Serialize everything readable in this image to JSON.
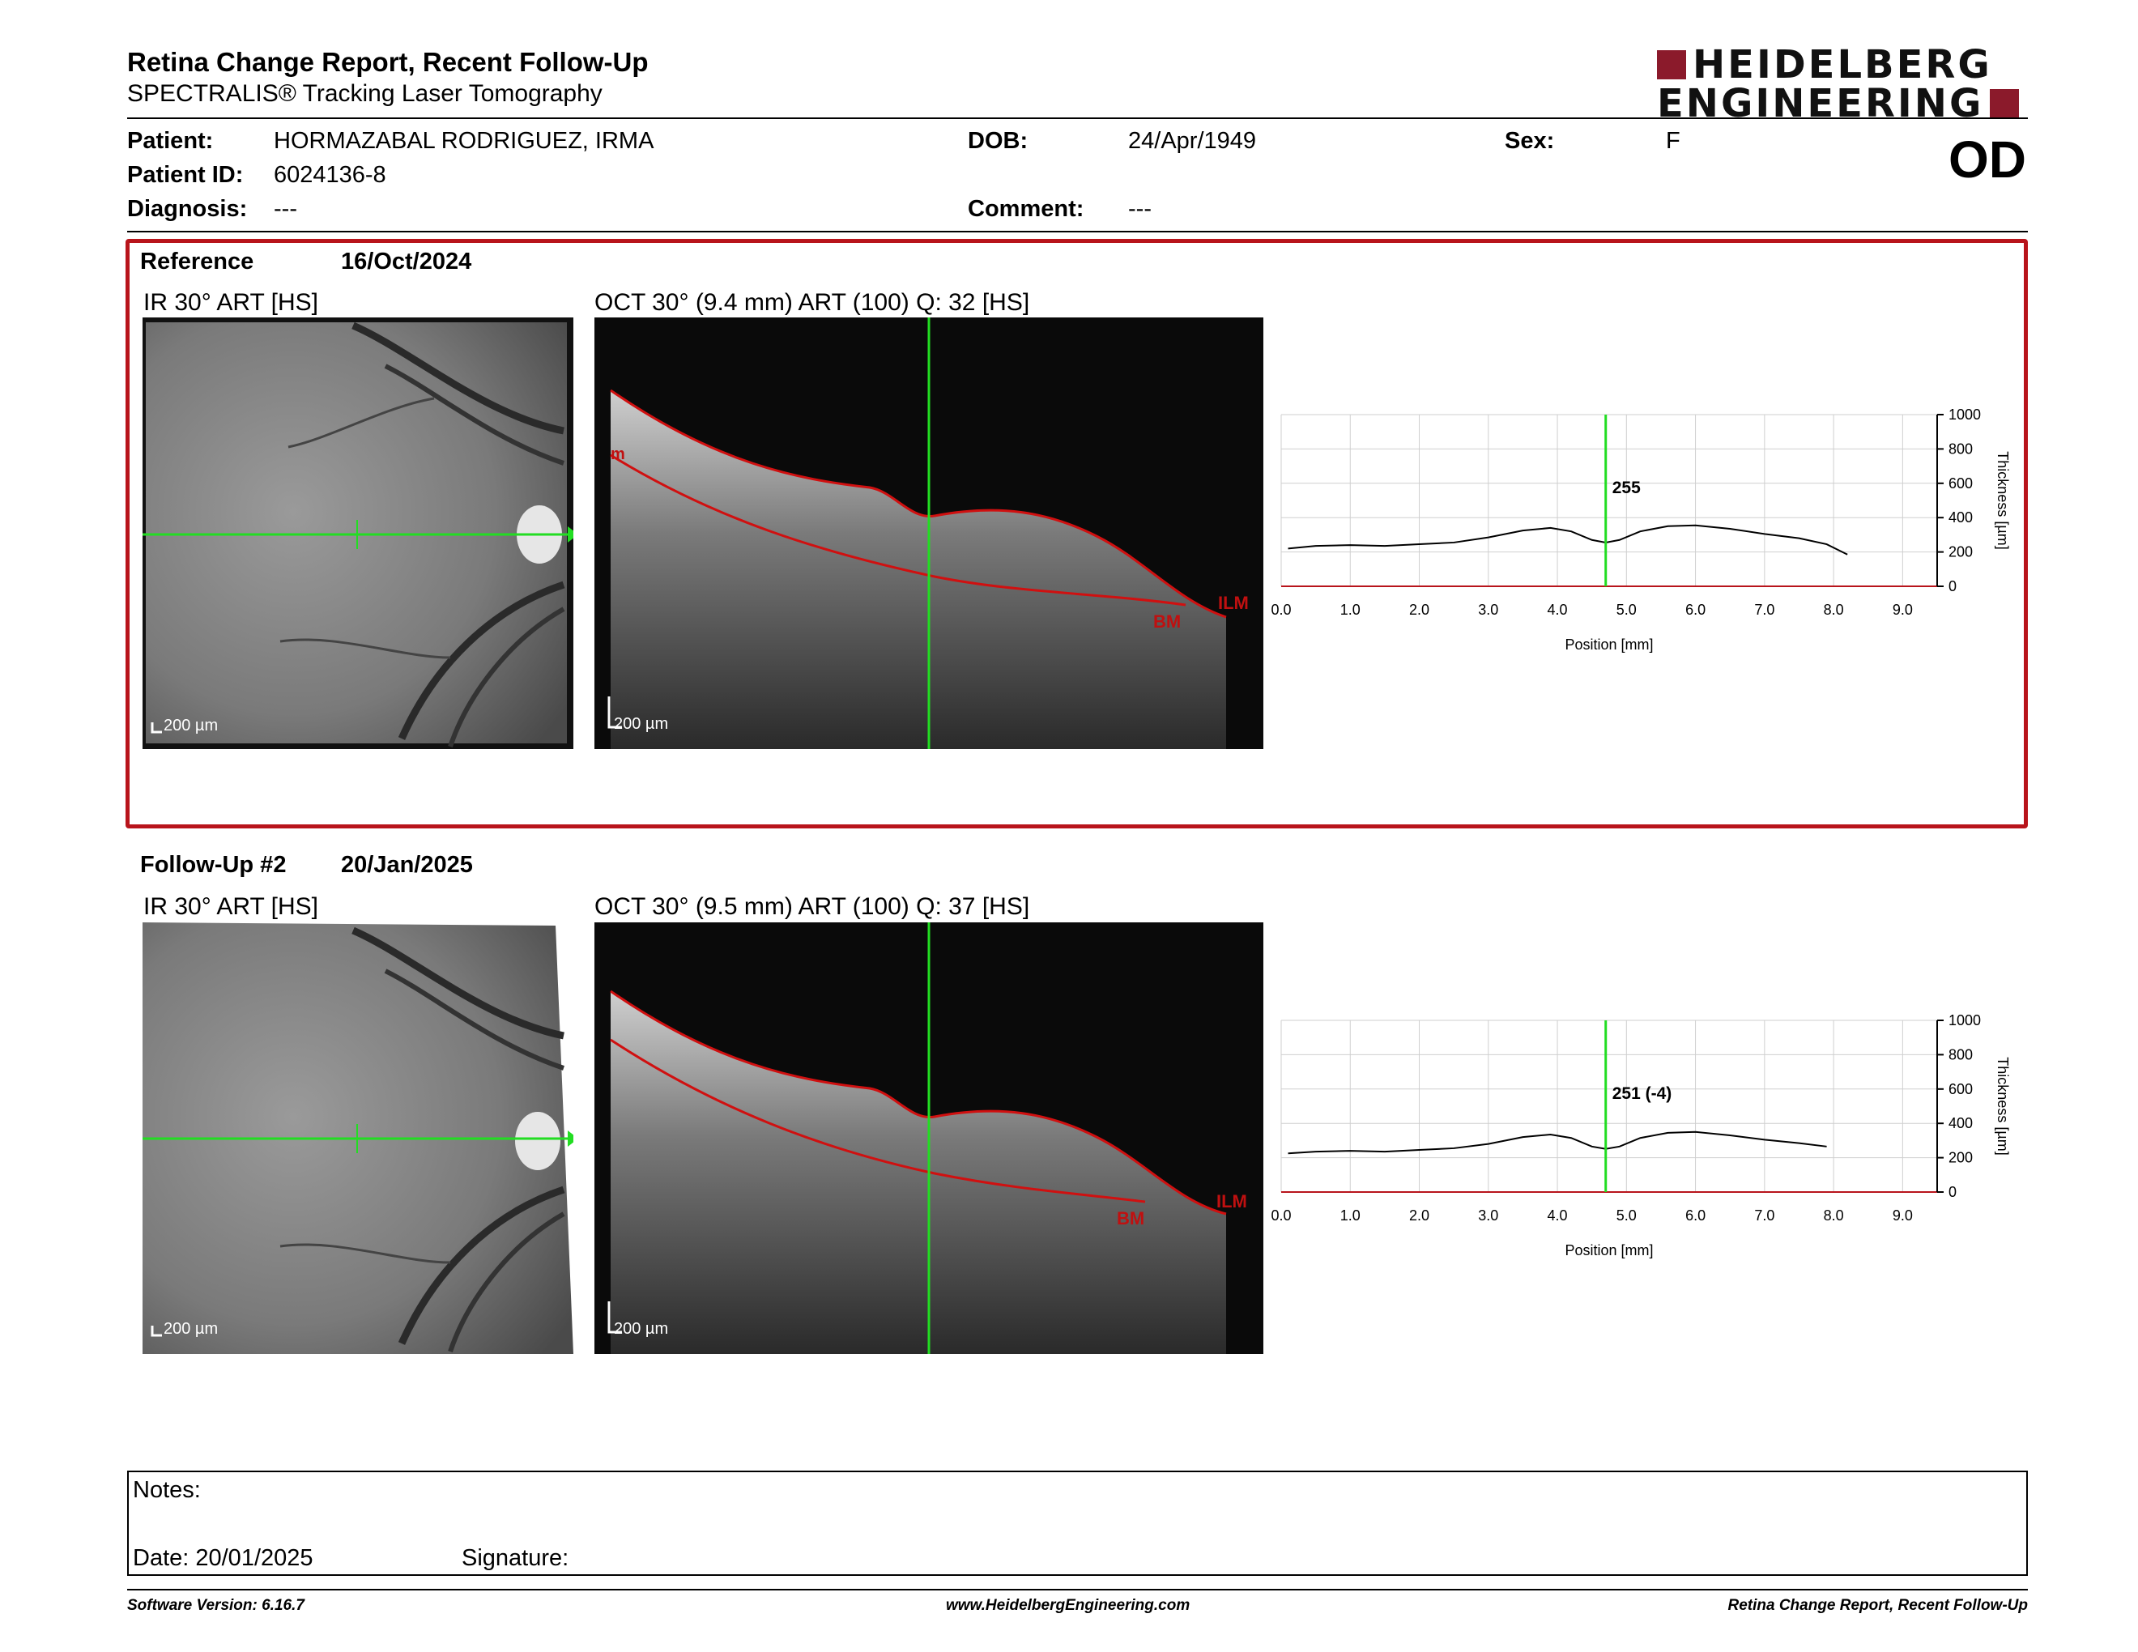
{
  "header": {
    "title": "Retina Change Report, Recent Follow-Up",
    "subtitle": "SPECTRALIS® Tracking Laser Tomography",
    "logo_line1": "HEIDELBERG",
    "logo_line2": "ENGINEERING",
    "brand_color": "#8b1a2b"
  },
  "patient": {
    "patient_label": "Patient:",
    "patient_value": "HORMAZABAL RODRIGUEZ, IRMA",
    "id_label": "Patient ID:",
    "id_value": "6024136-8",
    "diagnosis_label": "Diagnosis:",
    "diagnosis_value": "---",
    "dob_label": "DOB:",
    "dob_value": "24/Apr/1949",
    "comment_label": "Comment:",
    "comment_value": "---",
    "sex_label": "Sex:",
    "sex_value": "F",
    "eye": "OD"
  },
  "reference": {
    "label": "Reference",
    "date": "16/Oct/2024",
    "ir_title": "IR 30° ART [HS]",
    "oct_title": "OCT 30° (9.4 mm) ART (100) Q: 32 [HS]",
    "scale_ir": "200 µm",
    "scale_oct": "200 µm",
    "layer_labels": [
      "ILM",
      "BM"
    ],
    "cursor_value": "255"
  },
  "followup": {
    "label": "Follow-Up #2",
    "date": "20/Jan/2025",
    "ir_title": "IR 30° ART [HS]",
    "oct_title": "OCT 30° (9.5 mm) ART (100) Q: 37 [HS]",
    "scale_ir": "200 µm",
    "scale_oct": "200 µm",
    "layer_labels": [
      "ILM",
      "BM"
    ],
    "cursor_value": "251 (-4)"
  },
  "chart_data": [
    {
      "type": "line",
      "xlabel": "Position [mm]",
      "ylabel": "Thickness [µm]",
      "xlim": [
        0,
        9.5
      ],
      "ylim": [
        0,
        1000
      ],
      "xticks": [
        "0.0",
        "1.0",
        "2.0",
        "3.0",
        "4.0",
        "5.0",
        "6.0",
        "7.0",
        "8.0",
        "9.0"
      ],
      "yticks": [
        "0",
        "200",
        "400",
        "600",
        "800",
        "1000"
      ],
      "cursor_x": 4.7,
      "cursor_label": "255",
      "grid": true,
      "series": [
        {
          "x": [
            0.1,
            0.5,
            1.0,
            1.5,
            2.0,
            2.5,
            3.0,
            3.5,
            3.9,
            4.2,
            4.5,
            4.7,
            4.9,
            5.2,
            5.6,
            6.0,
            6.5,
            7.0,
            7.5,
            7.9,
            8.2
          ],
          "y": [
            220,
            235,
            240,
            235,
            245,
            255,
            285,
            325,
            340,
            320,
            270,
            255,
            270,
            320,
            350,
            355,
            335,
            305,
            280,
            245,
            185
          ]
        }
      ]
    },
    {
      "type": "line",
      "xlabel": "Position [mm]",
      "ylabel": "Thickness [µm]",
      "xlim": [
        0,
        9.5
      ],
      "ylim": [
        0,
        1000
      ],
      "xticks": [
        "0.0",
        "1.0",
        "2.0",
        "3.0",
        "4.0",
        "5.0",
        "6.0",
        "7.0",
        "8.0",
        "9.0"
      ],
      "yticks": [
        "0",
        "200",
        "400",
        "600",
        "800",
        "1000"
      ],
      "cursor_x": 4.7,
      "cursor_label": "251 (-4)",
      "grid": true,
      "series": [
        {
          "x": [
            0.1,
            0.5,
            1.0,
            1.5,
            2.0,
            2.5,
            3.0,
            3.5,
            3.9,
            4.2,
            4.5,
            4.7,
            4.9,
            5.2,
            5.6,
            6.0,
            6.5,
            7.0,
            7.5,
            7.9
          ],
          "y": [
            225,
            235,
            240,
            235,
            245,
            255,
            280,
            320,
            335,
            315,
            265,
            251,
            265,
            315,
            345,
            350,
            330,
            305,
            285,
            265
          ]
        }
      ]
    }
  ],
  "notes": {
    "notes_label": "Notes:",
    "date_label": "Date: 20/01/2025",
    "signature_label": "Signature:"
  },
  "footer": {
    "left": "Software Version: 6.16.7",
    "center": "www.HeidelbergEngineering.com",
    "right": "Retina Change Report, Recent Follow-Up"
  },
  "colors": {
    "ilm_line": "#d01010",
    "scan_line": "#22dd22",
    "frame": "#b8141b"
  }
}
